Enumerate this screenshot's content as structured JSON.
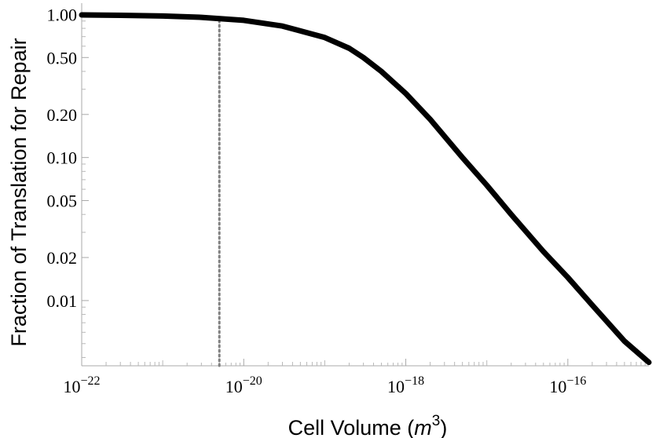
{
  "chart_data": {
    "type": "line",
    "xlabel": "Cell Volume (m³)",
    "xlabel_parts": {
      "prefix": "Cell Volume (",
      "unit": "m",
      "exponent": "3",
      "suffix": ")"
    },
    "ylabel": "Fraction of Translation for Repair",
    "x_scale": "log",
    "y_scale": "log",
    "xlim": [
      1e-22,
      1e-15
    ],
    "ylim": [
      0.0035,
      1.2
    ],
    "x_ticks": [
      {
        "value": 1e-22,
        "base": "10",
        "exp": "−22"
      },
      {
        "value": 1e-20,
        "base": "10",
        "exp": "−20"
      },
      {
        "value": 1e-18,
        "base": "10",
        "exp": "−18"
      },
      {
        "value": 1e-16,
        "base": "10",
        "exp": "−16"
      }
    ],
    "y_ticks": [
      {
        "value": 1.0,
        "label": "1.00"
      },
      {
        "value": 0.5,
        "label": "0.50"
      },
      {
        "value": 0.2,
        "label": "0.20"
      },
      {
        "value": 0.1,
        "label": "0.10"
      },
      {
        "value": 0.05,
        "label": "0.05"
      },
      {
        "value": 0.02,
        "label": "0.02"
      },
      {
        "value": 0.01,
        "label": "0.01"
      }
    ],
    "series": [
      {
        "x": [
          1e-22,
          3e-22,
          1e-21,
          3e-21,
          1e-20,
          3e-20,
          1e-19,
          2e-19,
          3e-19,
          5e-19,
          1e-18,
          2e-18,
          5e-18,
          1e-17,
          2e-17,
          5e-17,
          1e-16,
          2e-16,
          5e-16,
          1e-15
        ],
        "y": [
          0.993,
          0.987,
          0.975,
          0.955,
          0.91,
          0.83,
          0.69,
          0.58,
          0.5,
          0.4,
          0.28,
          0.185,
          0.1,
          0.064,
          0.04,
          0.022,
          0.0145,
          0.0093,
          0.0052,
          0.0037
        ],
        "color": "#000000"
      }
    ],
    "reference_line": {
      "x": 5e-21,
      "style": "dotted",
      "color": "#808080"
    },
    "grid": false,
    "legend": "none"
  }
}
